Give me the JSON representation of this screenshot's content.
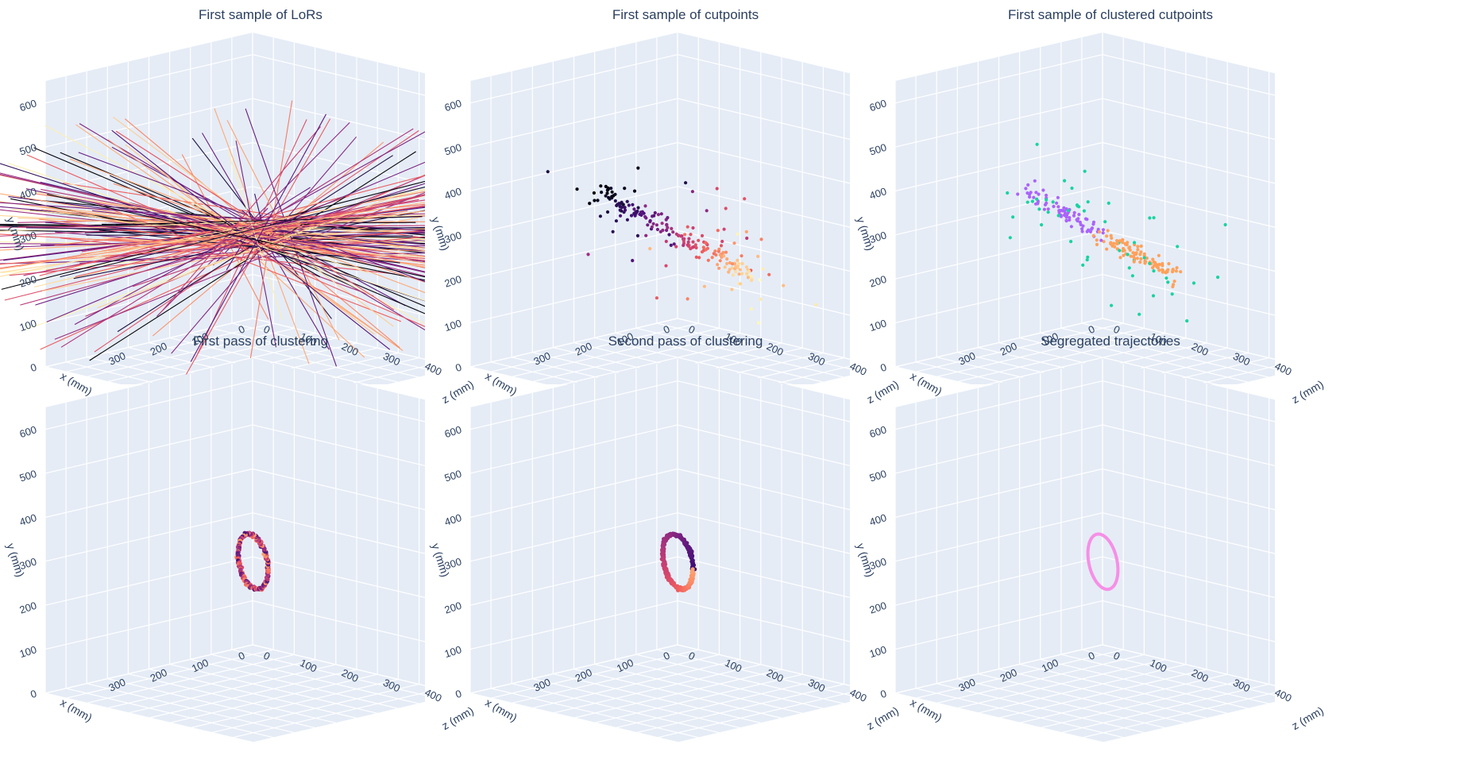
{
  "chart_data": [
    {
      "type": "scatter3d",
      "title": "First sample of LoRs",
      "mode": "lines",
      "xlabel": "x (mm)",
      "ylabel": "y (mm)",
      "zlabel": "z (mm)",
      "y_ticks": [
        "0",
        "100",
        "200",
        "300",
        "400",
        "500",
        "600"
      ],
      "x_ticks": [
        "0",
        "100",
        "200",
        "300"
      ],
      "z_ticks": [
        "0",
        "100",
        "200",
        "300",
        "400"
      ],
      "colorscale": "magma",
      "marks": "about 160 lines of response crossing near x=250, y=300, z=250",
      "y_range": [
        0,
        650
      ],
      "x_range": [
        0,
        500
      ],
      "z_range": [
        0,
        500
      ]
    },
    {
      "type": "scatter3d",
      "title": "First sample of cutpoints",
      "mode": "markers",
      "xlabel": "x (mm)",
      "ylabel": "y (mm)",
      "zlabel": "z (mm)",
      "y_ticks": [
        "0",
        "100",
        "200",
        "300",
        "400",
        "500",
        "600"
      ],
      "x_ticks": [
        "0",
        "100",
        "200",
        "300"
      ],
      "z_ticks": [
        "0",
        "100",
        "200",
        "300",
        "400"
      ],
      "colorscale": "magma",
      "y_range": [
        0,
        650
      ],
      "x_range": [
        0,
        500
      ],
      "z_range": [
        0,
        500
      ]
    },
    {
      "type": "scatter3d",
      "title": "First sample of clustered cutpoints",
      "mode": "markers",
      "xlabel": "x (mm)",
      "ylabel": "y (mm)",
      "zlabel": "z (mm)",
      "y_ticks": [
        "0",
        "100",
        "200",
        "300",
        "400",
        "500",
        "600"
      ],
      "x_ticks": [
        "0",
        "100",
        "200",
        "300"
      ],
      "z_ticks": [
        "0",
        "100",
        "200",
        "300",
        "400"
      ],
      "colors": {
        "noise": "#19d3a0",
        "cluster_a": "#ab63fa",
        "cluster_b": "#ffa15a"
      },
      "y_range": [
        0,
        650
      ],
      "x_range": [
        0,
        500
      ],
      "z_range": [
        0,
        500
      ]
    },
    {
      "type": "scatter3d",
      "title": "First pass of clustering",
      "mode": "markers",
      "xlabel": "x (mm)",
      "ylabel": "y (mm)",
      "zlabel": "z (mm)",
      "y_ticks": [
        "0",
        "100",
        "200",
        "300",
        "400",
        "500",
        "600"
      ],
      "x_ticks": [
        "0",
        "100",
        "200",
        "300"
      ],
      "z_ticks": [
        "0",
        "100",
        "200",
        "300",
        "400"
      ],
      "colorscale": "magma",
      "shape": "ring of points, radius about 50 mm, centred near x=250, y=300, z=250",
      "y_range": [
        0,
        650
      ],
      "x_range": [
        0,
        500
      ],
      "z_range": [
        0,
        500
      ]
    },
    {
      "type": "scatter3d",
      "title": "Second pass of clustering",
      "mode": "markers",
      "xlabel": "x (mm)",
      "ylabel": "y (mm)",
      "zlabel": "z (mm)",
      "y_ticks": [
        "0",
        "100",
        "200",
        "300",
        "400",
        "500",
        "600"
      ],
      "x_ticks": [
        "0",
        "100",
        "200",
        "300"
      ],
      "z_ticks": [
        "0",
        "100",
        "200",
        "300",
        "400"
      ],
      "colorscale": "magma",
      "shape": "ring of points, radius about 50 mm, centred near x=250, y=300, z=250",
      "y_range": [
        0,
        650
      ],
      "x_range": [
        0,
        500
      ],
      "z_range": [
        0,
        500
      ]
    },
    {
      "type": "scatter3d",
      "title": "Segregated trajectories",
      "mode": "lines",
      "xlabel": "x (mm)",
      "ylabel": "y (mm)",
      "zlabel": "z (mm)",
      "y_ticks": [
        "0",
        "100",
        "200",
        "300",
        "400",
        "500",
        "600"
      ],
      "x_ticks": [
        "0",
        "100",
        "200",
        "300"
      ],
      "z_ticks": [
        "0",
        "100",
        "200",
        "300",
        "400"
      ],
      "colors": {
        "trajectory": "#f68fe6"
      },
      "shape": "single closed ring trajectory",
      "y_range": [
        0,
        650
      ],
      "x_range": [
        0,
        500
      ],
      "z_range": [
        0,
        500
      ]
    }
  ],
  "style": {
    "scene_bg": "#e5ecf6",
    "grid": "#ffffff",
    "text": "#2a3f5f"
  }
}
